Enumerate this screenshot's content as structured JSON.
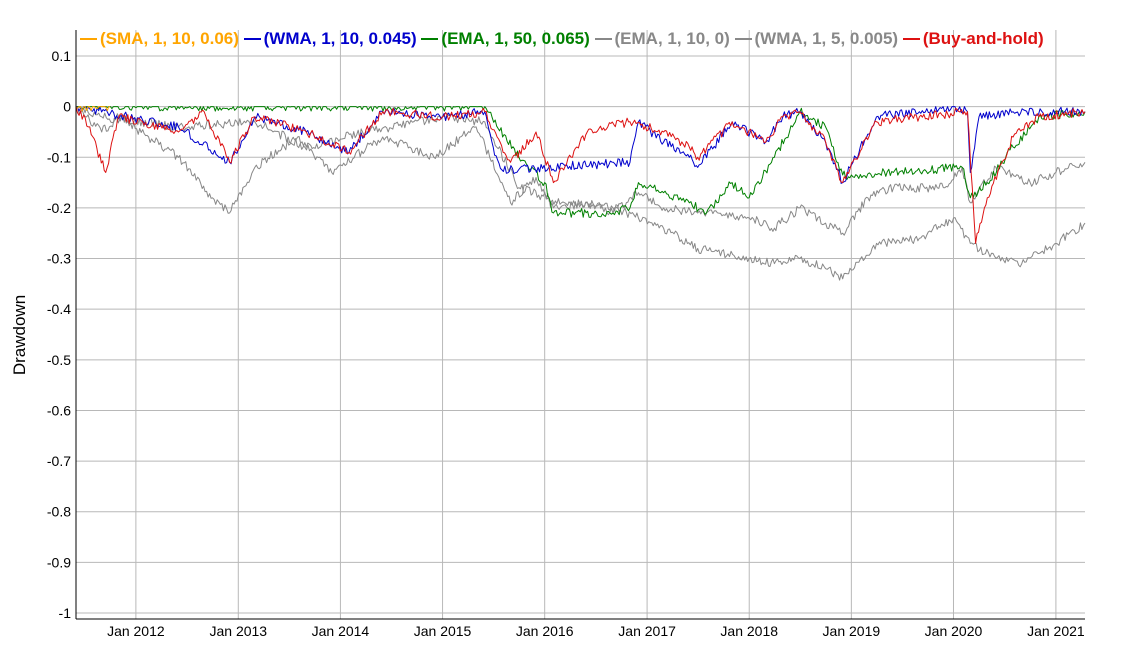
{
  "chart_data": {
    "type": "line",
    "ylabel": "Drawdown",
    "xlabel": "",
    "ylim": [
      -1,
      0.1
    ],
    "xlim": [
      "2011-06-01",
      "2021-04-15"
    ],
    "yticks": [
      "0.1",
      "0",
      "-0.1",
      "-0.2",
      "-0.3",
      "-0.4",
      "-0.5",
      "-0.6",
      "-0.7",
      "-0.8",
      "-0.9",
      "-1"
    ],
    "ytick_values": [
      0.1,
      0,
      -0.1,
      -0.2,
      -0.3,
      -0.4,
      -0.5,
      -0.6,
      -0.7,
      -0.8,
      -0.9,
      -1
    ],
    "xticks": [
      {
        "date": "2012-01-01",
        "label": "Jan 2012"
      },
      {
        "date": "2013-01-01",
        "label": "Jan 2013"
      },
      {
        "date": "2014-01-01",
        "label": "Jan 2014"
      },
      {
        "date": "2015-01-01",
        "label": "Jan 2015"
      },
      {
        "date": "2016-01-01",
        "label": "Jan 2016"
      },
      {
        "date": "2017-01-01",
        "label": "Jan 2017"
      },
      {
        "date": "2018-01-01",
        "label": "Jan 2018"
      },
      {
        "date": "2019-01-01",
        "label": "Jan 2019"
      },
      {
        "date": "2020-01-01",
        "label": "Jan 2020"
      },
      {
        "date": "2021-01-01",
        "label": "Jan 2021"
      }
    ],
    "grid": true,
    "legend_position": "top",
    "series": [
      {
        "name": "(SMA, 1, 10, 0.06)",
        "color": "#FFA500",
        "points": [
          [
            "2011-06-01",
            0
          ],
          [
            "2011-09-01",
            0
          ],
          [
            "2011-10-01",
            0
          ]
        ]
      },
      {
        "name": "(WMA, 1, 10, 0.045)",
        "color": "#0000CC",
        "points": [
          [
            "2011-06-01",
            0
          ],
          [
            "2011-12-01",
            -0.02
          ],
          [
            "2012-06-01",
            -0.04
          ],
          [
            "2012-12-01",
            -0.11
          ],
          [
            "2013-03-01",
            -0.02
          ],
          [
            "2013-09-01",
            -0.05
          ],
          [
            "2014-02-01",
            -0.09
          ],
          [
            "2014-06-01",
            -0.01
          ],
          [
            "2015-01-01",
            -0.02
          ],
          [
            "2015-06-01",
            -0.01
          ],
          [
            "2015-07-01",
            -0.08
          ],
          [
            "2015-08-01",
            -0.125
          ],
          [
            "2016-11-01",
            -0.11
          ],
          [
            "2016-12-01",
            -0.03
          ],
          [
            "2017-03-01",
            -0.07
          ],
          [
            "2017-06-01",
            -0.1
          ],
          [
            "2017-07-01",
            -0.12
          ],
          [
            "2017-11-01",
            -0.03
          ],
          [
            "2018-03-01",
            -0.07
          ],
          [
            "2018-05-01",
            -0.02
          ],
          [
            "2018-07-01",
            -0.01
          ],
          [
            "2018-10-01",
            -0.07
          ],
          [
            "2018-12-01",
            -0.15
          ],
          [
            "2019-04-01",
            -0.02
          ],
          [
            "2019-09-01",
            -0.01
          ],
          [
            "2020-01-01",
            -0.0
          ],
          [
            "2020-02-20",
            -0.01
          ],
          [
            "2020-03-01",
            -0.13
          ],
          [
            "2020-04-01",
            -0.02
          ],
          [
            "2020-08-01",
            -0.01
          ],
          [
            "2021-04-15",
            -0.01
          ]
        ]
      },
      {
        "name": "(EMA, 1, 50, 0.065)",
        "color": "#008000",
        "points": [
          [
            "2011-06-01",
            0
          ],
          [
            "2015-06-01",
            0
          ],
          [
            "2015-10-01",
            -0.1
          ],
          [
            "2016-01-01",
            -0.15
          ],
          [
            "2016-02-01",
            -0.21
          ],
          [
            "2016-09-01",
            -0.21
          ],
          [
            "2016-11-01",
            -0.2
          ],
          [
            "2016-12-01",
            -0.15
          ],
          [
            "2017-03-01",
            -0.17
          ],
          [
            "2017-06-01",
            -0.19
          ],
          [
            "2017-08-01",
            -0.21
          ],
          [
            "2017-11-01",
            -0.15
          ],
          [
            "2018-01-01",
            -0.18
          ],
          [
            "2018-04-01",
            -0.1
          ],
          [
            "2018-07-01",
            -0.01
          ],
          [
            "2018-10-01",
            -0.04
          ],
          [
            "2018-12-01",
            -0.135
          ],
          [
            "2019-01-01",
            -0.135
          ],
          [
            "2020-02-01",
            -0.12
          ],
          [
            "2020-03-01",
            -0.18
          ],
          [
            "2020-05-01",
            -0.15
          ],
          [
            "2020-08-01",
            -0.08
          ],
          [
            "2020-11-01",
            -0.02
          ],
          [
            "2021-04-15",
            -0.01
          ]
        ]
      },
      {
        "name": "(EMA, 1, 10, 0)",
        "color": "#888888",
        "points": [
          [
            "2011-06-01",
            0
          ],
          [
            "2011-09-01",
            -0.05
          ],
          [
            "2011-11-01",
            -0.02
          ],
          [
            "2012-06-01",
            -0.1
          ],
          [
            "2012-10-01",
            -0.18
          ],
          [
            "2012-12-01",
            -0.21
          ],
          [
            "2013-03-01",
            -0.12
          ],
          [
            "2013-08-01",
            -0.06
          ],
          [
            "2013-12-01",
            -0.13
          ],
          [
            "2014-06-01",
            -0.06
          ],
          [
            "2014-12-01",
            -0.1
          ],
          [
            "2015-05-01",
            -0.04
          ],
          [
            "2015-08-01",
            -0.15
          ],
          [
            "2015-09-01",
            -0.19
          ],
          [
            "2015-12-01",
            -0.14
          ],
          [
            "2016-02-01",
            -0.2
          ],
          [
            "2016-06-01",
            -0.19
          ],
          [
            "2016-09-01",
            -0.21
          ],
          [
            "2016-12-01",
            -0.17
          ],
          [
            "2017-03-01",
            -0.2
          ],
          [
            "2017-07-01",
            -0.21
          ],
          [
            "2018-01-01",
            -0.22
          ],
          [
            "2018-04-01",
            -0.24
          ],
          [
            "2018-07-01",
            -0.2
          ],
          [
            "2018-10-01",
            -0.23
          ],
          [
            "2018-12-01",
            -0.25
          ],
          [
            "2019-03-01",
            -0.18
          ],
          [
            "2019-06-01",
            -0.16
          ],
          [
            "2019-12-01",
            -0.16
          ],
          [
            "2020-02-01",
            -0.12
          ],
          [
            "2020-03-01",
            -0.19
          ],
          [
            "2020-06-01",
            -0.12
          ],
          [
            "2020-10-01",
            -0.15
          ],
          [
            "2021-01-01",
            -0.13
          ],
          [
            "2021-04-15",
            -0.11
          ]
        ]
      },
      {
        "name": "(WMA, 1, 5, 0.005)",
        "color": "#888888",
        "points": [
          [
            "2011-06-01",
            0
          ],
          [
            "2011-09-01",
            -0.02
          ],
          [
            "2012-06-01",
            -0.04
          ],
          [
            "2013-03-01",
            -0.03
          ],
          [
            "2013-09-01",
            -0.08
          ],
          [
            "2014-04-01",
            -0.05
          ],
          [
            "2015-01-01",
            -0.02
          ],
          [
            "2015-06-01",
            -0.03
          ],
          [
            "2015-10-01",
            -0.16
          ],
          [
            "2016-03-01",
            -0.19
          ],
          [
            "2016-09-01",
            -0.2
          ],
          [
            "2016-12-01",
            -0.22
          ],
          [
            "2017-03-01",
            -0.24
          ],
          [
            "2017-07-01",
            -0.28
          ],
          [
            "2018-01-01",
            -0.3
          ],
          [
            "2018-04-01",
            -0.31
          ],
          [
            "2018-07-01",
            -0.3
          ],
          [
            "2018-10-01",
            -0.32
          ],
          [
            "2018-12-01",
            -0.34
          ],
          [
            "2019-04-01",
            -0.27
          ],
          [
            "2019-09-01",
            -0.26
          ],
          [
            "2020-01-01",
            -0.22
          ],
          [
            "2020-03-01",
            -0.27
          ],
          [
            "2020-06-01",
            -0.3
          ],
          [
            "2020-09-01",
            -0.31
          ],
          [
            "2021-01-01",
            -0.27
          ],
          [
            "2021-04-15",
            -0.23
          ]
        ]
      },
      {
        "name": "(Buy-and-hold)",
        "color": "#DD1111",
        "points": [
          [
            "2011-06-01",
            0
          ],
          [
            "2011-07-15",
            -0.04
          ],
          [
            "2011-09-15",
            -0.13
          ],
          [
            "2011-11-01",
            -0.02
          ],
          [
            "2012-06-01",
            -0.05
          ],
          [
            "2012-09-01",
            -0.01
          ],
          [
            "2012-12-01",
            -0.11
          ],
          [
            "2013-03-01",
            -0.02
          ],
          [
            "2013-09-01",
            -0.05
          ],
          [
            "2014-02-01",
            -0.09
          ],
          [
            "2014-06-01",
            -0.01
          ],
          [
            "2015-01-01",
            -0.02
          ],
          [
            "2015-06-01",
            -0.01
          ],
          [
            "2015-07-15",
            -0.06
          ],
          [
            "2015-09-01",
            -0.11
          ],
          [
            "2015-12-01",
            -0.05
          ],
          [
            "2016-02-01",
            -0.15
          ],
          [
            "2016-06-01",
            -0.05
          ],
          [
            "2016-11-01",
            -0.03
          ],
          [
            "2017-03-01",
            -0.05
          ],
          [
            "2017-06-01",
            -0.08
          ],
          [
            "2017-07-01",
            -0.1
          ],
          [
            "2017-11-01",
            -0.03
          ],
          [
            "2018-03-01",
            -0.07
          ],
          [
            "2018-05-01",
            -0.02
          ],
          [
            "2018-07-01",
            -0.01
          ],
          [
            "2018-10-01",
            -0.07
          ],
          [
            "2018-12-01",
            -0.15
          ],
          [
            "2019-04-01",
            -0.03
          ],
          [
            "2019-09-01",
            -0.02
          ],
          [
            "2020-02-20",
            -0.01
          ],
          [
            "2020-03-20",
            -0.27
          ],
          [
            "2020-05-01",
            -0.18
          ],
          [
            "2020-08-01",
            -0.06
          ],
          [
            "2020-11-01",
            -0.02
          ],
          [
            "2021-04-15",
            -0.01
          ]
        ]
      }
    ]
  }
}
